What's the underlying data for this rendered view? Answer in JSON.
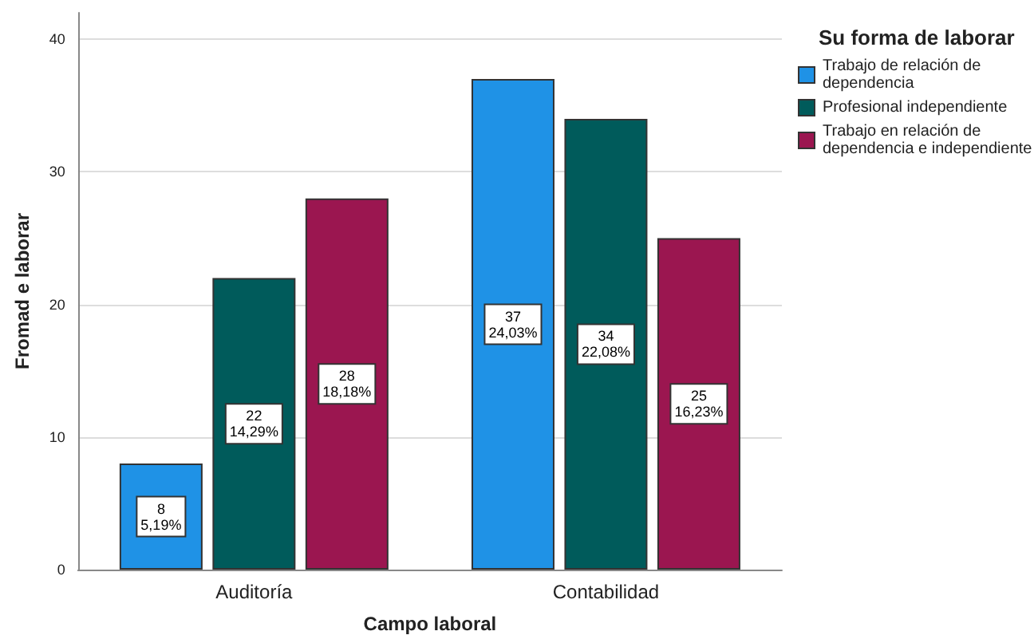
{
  "chart_data": {
    "type": "bar",
    "xlabel": "Campo laboral",
    "ylabel": "Fromad e laborar",
    "legend_title": "Su forma de laborar",
    "categories": [
      "Auditoría",
      "Contabilidad"
    ],
    "series": [
      {
        "name": "Trabajo de relación de dependencia",
        "color": "#1f92e6",
        "values": [
          8,
          37
        ],
        "value_labels": [
          "8\n5,19%",
          "37\n24,03%"
        ]
      },
      {
        "name": "Profesional independiente",
        "color": "#005b5b",
        "values": [
          22,
          34
        ],
        "value_labels": [
          "22\n14,29%",
          "34\n22,08%"
        ]
      },
      {
        "name": "Trabajo en relación de dependencia e independiente",
        "color": "#9b1650",
        "values": [
          28,
          25
        ],
        "value_labels": [
          "28\n18,18%",
          "25\n16,23%"
        ]
      }
    ],
    "ylim": [
      0,
      42
    ],
    "yticks": [
      0,
      10,
      20,
      30,
      40
    ],
    "grid": "y",
    "legend": "top right"
  }
}
